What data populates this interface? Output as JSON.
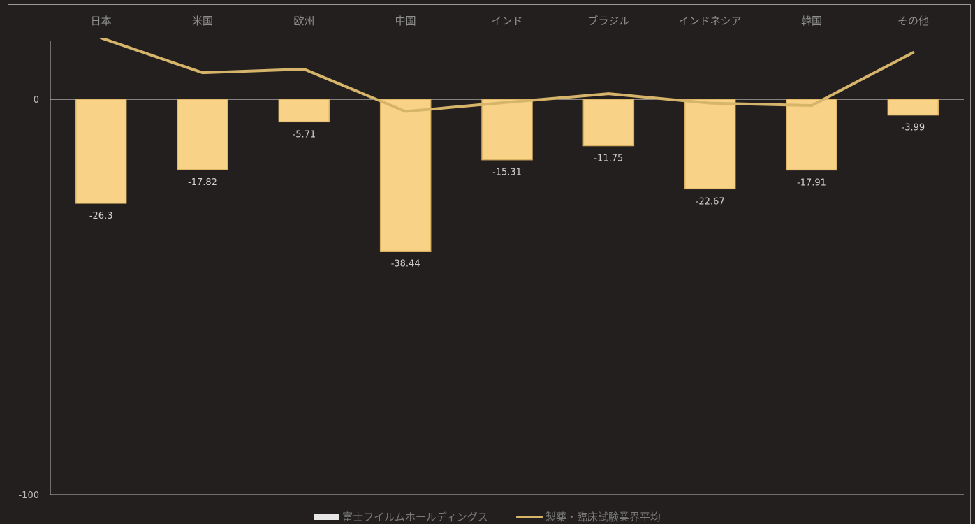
{
  "colors": {
    "background": "#231f1e",
    "bar_fill": "#f8d286",
    "bar_stroke": "#d9b060",
    "line": "#d6b56b",
    "axis": "#bfbfbf",
    "frame": "#9a9a9a",
    "legend_bar_swatch": "#e6e6e6"
  },
  "chart_data": {
    "type": "bar",
    "categories": [
      "日本",
      "米国",
      "欧州",
      "中国",
      "インド",
      "ブラジル",
      "インドネシア",
      "韓国",
      "その他"
    ],
    "series": [
      {
        "name": "富士フイルムホールディングス",
        "type": "bar",
        "values": [
          -26.3,
          -17.82,
          -5.71,
          -38.44,
          -15.31,
          -11.75,
          -22.67,
          -17.91,
          -3.99
        ]
      },
      {
        "name": "製薬・臨床試験業界平均",
        "type": "line",
        "values": [
          15.5,
          6.7,
          7.6,
          -3.1,
          -0.8,
          1.4,
          -1.0,
          -1.6,
          11.8
        ]
      }
    ],
    "value_labels": [
      "-26.3",
      "-17.82",
      "-5.71",
      "-38.44",
      "-15.31",
      "-11.75",
      "-22.67",
      "-17.91",
      "-3.99"
    ],
    "y_ticks": [
      {
        "value": 0,
        "label": "0"
      },
      {
        "value": -100,
        "label": "-100"
      }
    ],
    "ylim": [
      -100,
      15
    ],
    "grid": false,
    "legend_position": "bottom",
    "title": "",
    "xlabel": "",
    "ylabel": ""
  }
}
